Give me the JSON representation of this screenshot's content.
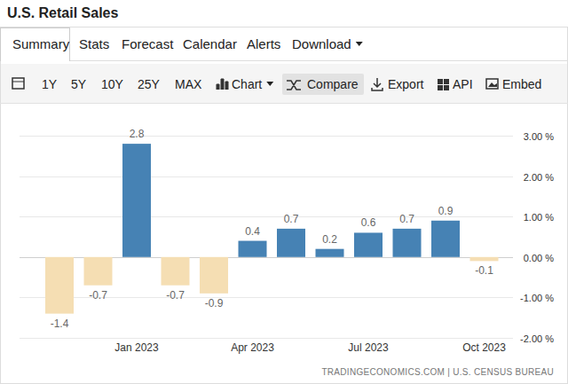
{
  "chart_data": {
    "type": "bar",
    "title": "U.S. Retail Sales",
    "categories": [
      null,
      null,
      "Jan 2023",
      null,
      null,
      "Apr 2023",
      null,
      null,
      "Jul 2023",
      null,
      null,
      "Oct 2023"
    ],
    "values": [
      -1.4,
      -0.7,
      2.8,
      -0.7,
      -0.9,
      0.4,
      0.7,
      0.2,
      0.6,
      0.7,
      0.9,
      -0.1
    ],
    "colors": [
      "#f5deb3",
      "#f5deb3",
      "#4682b4",
      "#f5deb3",
      "#f5deb3",
      "#4682b4",
      "#4682b4",
      "#4682b4",
      "#4682b4",
      "#4682b4",
      "#4682b4",
      "#f5deb3"
    ],
    "ylim": [
      -2,
      3
    ],
    "yticks": [
      {
        "value": 3,
        "label": "3.00 %"
      },
      {
        "value": 2,
        "label": "2.00 %"
      },
      {
        "value": 1,
        "label": "1.00 %"
      },
      {
        "value": 0,
        "label": "0.00 %"
      },
      {
        "value": -1,
        "label": "-1.00 %"
      },
      {
        "value": -2,
        "label": "-2.00 %"
      }
    ],
    "grid": true,
    "data_labels": true,
    "annotations": [
      "TRADINGECONOMICS.COM | U.S. CENSUS BUREAU"
    ]
  },
  "page": {
    "tabs": [
      "Summary",
      "Stats",
      "Forecast",
      "Calendar",
      "Alerts",
      "Download"
    ],
    "toolbar": [
      "1Y",
      "5Y",
      "10Y",
      "25Y",
      "MAX",
      "Chart",
      "Compare",
      "Export",
      "API",
      "Embed"
    ]
  }
}
